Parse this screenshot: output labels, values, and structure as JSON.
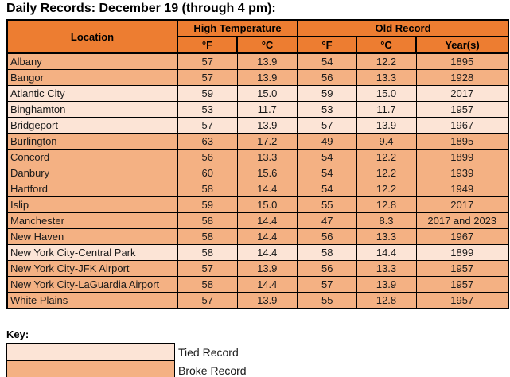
{
  "title": "Daily Records: December 19 (through 4 pm):",
  "colors": {
    "header": "#ED7D31",
    "broke": "#F4B183",
    "tied": "#FCE4D6"
  },
  "table": {
    "header": {
      "location": "Location",
      "high_temperature": "High Temperature",
      "old_record": "Old Record",
      "high_f": "°F",
      "high_c": "°C",
      "old_f": "°F",
      "old_c": "°C",
      "years": "Year(s)"
    },
    "rows": [
      {
        "location": "Albany",
        "high_f": "57",
        "high_c": "13.9",
        "old_f": "54",
        "old_c": "12.2",
        "years": "1895",
        "status": "broke"
      },
      {
        "location": "Bangor",
        "high_f": "57",
        "high_c": "13.9",
        "old_f": "56",
        "old_c": "13.3",
        "years": "1928",
        "status": "broke"
      },
      {
        "location": "Atlantic City",
        "high_f": "59",
        "high_c": "15.0",
        "old_f": "59",
        "old_c": "15.0",
        "years": "2017",
        "status": "tied"
      },
      {
        "location": "Binghamton",
        "high_f": "53",
        "high_c": "11.7",
        "old_f": "53",
        "old_c": "11.7",
        "years": "1957",
        "status": "tied"
      },
      {
        "location": "Bridgeport",
        "high_f": "57",
        "high_c": "13.9",
        "old_f": "57",
        "old_c": "13.9",
        "years": "1967",
        "status": "tied"
      },
      {
        "location": "Burlington",
        "high_f": "63",
        "high_c": "17.2",
        "old_f": "49",
        "old_c": "9.4",
        "years": "1895",
        "status": "broke"
      },
      {
        "location": "Concord",
        "high_f": "56",
        "high_c": "13.3",
        "old_f": "54",
        "old_c": "12.2",
        "years": "1899",
        "status": "broke"
      },
      {
        "location": "Danbury",
        "high_f": "60",
        "high_c": "15.6",
        "old_f": "54",
        "old_c": "12.2",
        "years": "1939",
        "status": "broke"
      },
      {
        "location": "Hartford",
        "high_f": "58",
        "high_c": "14.4",
        "old_f": "54",
        "old_c": "12.2",
        "years": "1949",
        "status": "broke"
      },
      {
        "location": "Islip",
        "high_f": "59",
        "high_c": "15.0",
        "old_f": "55",
        "old_c": "12.8",
        "years": "2017",
        "status": "broke"
      },
      {
        "location": "Manchester",
        "high_f": "58",
        "high_c": "14.4",
        "old_f": "47",
        "old_c": "8.3",
        "years": "2017 and 2023",
        "status": "broke"
      },
      {
        "location": "New Haven",
        "high_f": "58",
        "high_c": "14.4",
        "old_f": "56",
        "old_c": "13.3",
        "years": "1967",
        "status": "broke"
      },
      {
        "location": "New York City-Central Park",
        "high_f": "58",
        "high_c": "14.4",
        "old_f": "58",
        "old_c": "14.4",
        "years": "1899",
        "status": "tied"
      },
      {
        "location": "New York City-JFK Airport",
        "high_f": "57",
        "high_c": "13.9",
        "old_f": "56",
        "old_c": "13.3",
        "years": "1957",
        "status": "broke"
      },
      {
        "location": "New York City-LaGuardia Airport",
        "high_f": "58",
        "high_c": "14.4",
        "old_f": "57",
        "old_c": "13.9",
        "years": "1957",
        "status": "broke"
      },
      {
        "location": "White Plains",
        "high_f": "57",
        "high_c": "13.9",
        "old_f": "55",
        "old_c": "12.8",
        "years": "1957",
        "status": "broke"
      }
    ]
  },
  "key": {
    "label": "Key:",
    "items": [
      {
        "label": "Tied Record",
        "color": "#FCE4D6"
      },
      {
        "label": "Broke Record",
        "color": "#F4B183"
      }
    ]
  }
}
